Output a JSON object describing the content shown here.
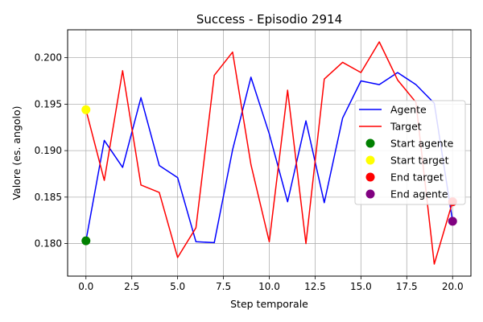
{
  "chart_data": {
    "type": "line",
    "title": "Success - Episodio 2914",
    "xlabel": "Step temporale",
    "ylabel": "Valore (es. angolo)",
    "xlim": [
      -1.0,
      21.0
    ],
    "ylim": [
      0.1765,
      0.203
    ],
    "xticks": [
      0.0,
      2.5,
      5.0,
      7.5,
      10.0,
      12.5,
      15.0,
      17.5,
      20.0
    ],
    "xtick_labels": [
      "0.0",
      "2.5",
      "5.0",
      "7.5",
      "10.0",
      "12.5",
      "15.0",
      "17.5",
      "20.0"
    ],
    "yticks": [
      0.18,
      0.185,
      0.19,
      0.195,
      0.2
    ],
    "ytick_labels": [
      "0.180",
      "0.185",
      "0.190",
      "0.195",
      "0.200"
    ],
    "grid": true,
    "legend_position": "center-right",
    "x": [
      0,
      1,
      2,
      3,
      4,
      5,
      6,
      7,
      8,
      9,
      10,
      11,
      12,
      13,
      14,
      15,
      16,
      17,
      18,
      19,
      20
    ],
    "series": [
      {
        "name": "Agente",
        "color": "#0000ff",
        "values": [
          0.1803,
          0.1911,
          0.1882,
          0.1957,
          0.1884,
          0.1871,
          0.1802,
          0.1801,
          0.1901,
          0.1979,
          0.1918,
          0.1845,
          0.1932,
          0.1844,
          0.1935,
          0.1975,
          0.1971,
          0.1984,
          0.1971,
          0.1951,
          0.1824
        ]
      },
      {
        "name": "Target",
        "color": "#ff0000",
        "values": [
          0.1944,
          0.1868,
          0.1986,
          0.1863,
          0.1855,
          0.1785,
          0.1817,
          0.1981,
          0.2006,
          0.1885,
          0.1802,
          0.1965,
          0.18,
          0.1977,
          0.1995,
          0.1984,
          0.2017,
          0.1976,
          0.1952,
          0.1778,
          0.1845
        ]
      }
    ],
    "markers": [
      {
        "name": "Start agente",
        "color": "#008000",
        "x": 0,
        "y": 0.1803
      },
      {
        "name": "Start target",
        "color": "#ffff00",
        "x": 0,
        "y": 0.1944
      },
      {
        "name": "End target",
        "color": "#ff0000",
        "x": 20,
        "y": 0.1845
      },
      {
        "name": "End agente",
        "color": "#800080",
        "x": 20,
        "y": 0.1824
      }
    ]
  }
}
